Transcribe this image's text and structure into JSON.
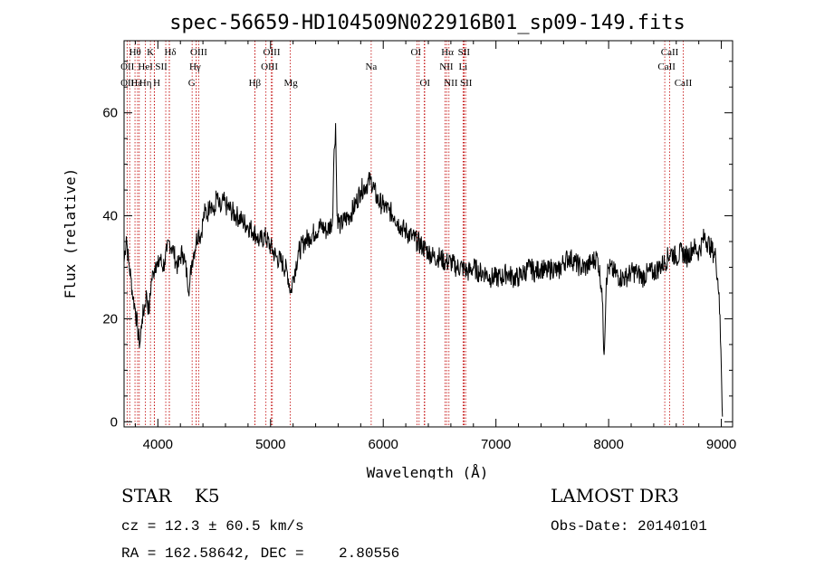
{
  "chart_data": {
    "type": "line",
    "title": "spec-56659-HD104509N022916B01_sp09-149.fits",
    "xlabel": "Wavelength (Å)",
    "ylabel": "Flux (relative)",
    "xlim": [
      3700,
      9100
    ],
    "ylim": [
      -1,
      74
    ],
    "x_ticks": [
      4000,
      5000,
      6000,
      7000,
      8000,
      9000
    ],
    "y_ticks": [
      0,
      20,
      40,
      60
    ],
    "series": [
      {
        "name": "spectrum",
        "points": [
          [
            3700,
            31
          ],
          [
            3720,
            36
          ],
          [
            3740,
            31
          ],
          [
            3760,
            28
          ],
          [
            3780,
            24
          ],
          [
            3800,
            22
          ],
          [
            3820,
            18
          ],
          [
            3840,
            15
          ],
          [
            3860,
            20
          ],
          [
            3880,
            22
          ],
          [
            3900,
            25
          ],
          [
            3920,
            21
          ],
          [
            3940,
            27
          ],
          [
            3960,
            29
          ],
          [
            3980,
            31
          ],
          [
            4000,
            30
          ],
          [
            4020,
            32
          ],
          [
            4040,
            30
          ],
          [
            4060,
            31
          ],
          [
            4080,
            33
          ],
          [
            4100,
            35
          ],
          [
            4120,
            34
          ],
          [
            4140,
            33
          ],
          [
            4160,
            31
          ],
          [
            4180,
            30
          ],
          [
            4200,
            32
          ],
          [
            4220,
            33
          ],
          [
            4240,
            31
          ],
          [
            4260,
            28
          ],
          [
            4280,
            26
          ],
          [
            4300,
            31
          ],
          [
            4320,
            33
          ],
          [
            4340,
            35
          ],
          [
            4360,
            37
          ],
          [
            4380,
            36
          ],
          [
            4400,
            39
          ],
          [
            4420,
            41
          ],
          [
            4440,
            40
          ],
          [
            4460,
            43
          ],
          [
            4480,
            42
          ],
          [
            4500,
            40
          ],
          [
            4520,
            44
          ],
          [
            4540,
            42
          ],
          [
            4560,
            41
          ],
          [
            4580,
            43
          ],
          [
            4600,
            42
          ],
          [
            4650,
            41
          ],
          [
            4700,
            40
          ],
          [
            4750,
            39
          ],
          [
            4800,
            38
          ],
          [
            4850,
            37
          ],
          [
            4880,
            36
          ],
          [
            4900,
            35
          ],
          [
            4950,
            36
          ],
          [
            5000,
            34
          ],
          [
            5050,
            32
          ],
          [
            5100,
            31
          ],
          [
            5150,
            29
          ],
          [
            5180,
            25
          ],
          [
            5200,
            28
          ],
          [
            5250,
            33
          ],
          [
            5300,
            35
          ],
          [
            5350,
            36
          ],
          [
            5400,
            37
          ],
          [
            5450,
            38
          ],
          [
            5500,
            37
          ],
          [
            5550,
            39
          ],
          [
            5560,
            50
          ],
          [
            5577,
            58
          ],
          [
            5590,
            40
          ],
          [
            5620,
            38
          ],
          [
            5650,
            39
          ],
          [
            5700,
            40
          ],
          [
            5750,
            42
          ],
          [
            5800,
            45
          ],
          [
            5850,
            46
          ],
          [
            5890,
            47
          ],
          [
            5920,
            45
          ],
          [
            5950,
            43
          ],
          [
            6000,
            42
          ],
          [
            6050,
            41
          ],
          [
            6100,
            40
          ],
          [
            6150,
            38
          ],
          [
            6200,
            37
          ],
          [
            6250,
            36
          ],
          [
            6300,
            35
          ],
          [
            6350,
            34
          ],
          [
            6400,
            33
          ],
          [
            6450,
            32
          ],
          [
            6500,
            32
          ],
          [
            6550,
            31
          ],
          [
            6600,
            31
          ],
          [
            6650,
            30
          ],
          [
            6700,
            30
          ],
          [
            6750,
            29
          ],
          [
            6800,
            30
          ],
          [
            6850,
            29
          ],
          [
            6900,
            29
          ],
          [
            6950,
            28
          ],
          [
            7000,
            28
          ],
          [
            7050,
            28
          ],
          [
            7100,
            29
          ],
          [
            7150,
            28
          ],
          [
            7200,
            28
          ],
          [
            7250,
            29
          ],
          [
            7300,
            30
          ],
          [
            7350,
            29
          ],
          [
            7400,
            30
          ],
          [
            7450,
            29
          ],
          [
            7500,
            30
          ],
          [
            7550,
            29
          ],
          [
            7600,
            31
          ],
          [
            7650,
            32
          ],
          [
            7700,
            31
          ],
          [
            7750,
            30
          ],
          [
            7800,
            30
          ],
          [
            7850,
            31
          ],
          [
            7900,
            32
          ],
          [
            7940,
            26
          ],
          [
            7960,
            13
          ],
          [
            7980,
            28
          ],
          [
            8000,
            30
          ],
          [
            8050,
            29
          ],
          [
            8100,
            28
          ],
          [
            8150,
            28
          ],
          [
            8200,
            29
          ],
          [
            8250,
            29
          ],
          [
            8300,
            28
          ],
          [
            8350,
            29
          ],
          [
            8400,
            29
          ],
          [
            8450,
            30
          ],
          [
            8500,
            31
          ],
          [
            8550,
            33
          ],
          [
            8600,
            32
          ],
          [
            8650,
            33
          ],
          [
            8700,
            32
          ],
          [
            8750,
            34
          ],
          [
            8800,
            33
          ],
          [
            8850,
            36
          ],
          [
            8900,
            34
          ],
          [
            8950,
            32
          ],
          [
            8980,
            25
          ],
          [
            9000,
            10
          ],
          [
            9010,
            1
          ]
        ]
      }
    ],
    "spectral_lines": [
      {
        "label": "Hθ",
        "row": 1,
        "wl": 3797,
        "anchor": 3798
      },
      {
        "label": "OII",
        "row": 2,
        "wl": 3727,
        "anchor": 3730
      },
      {
        "label": "OII",
        "row": 3,
        "wl": 3727,
        "anchor": 3730
      },
      {
        "label": "Hε",
        "row": 3,
        "wl": 3889,
        "anchor": 3810
      },
      {
        "label": "Hη",
        "row": 3,
        "wl": 3835,
        "anchor": 3890
      },
      {
        "label": "K",
        "row": 1,
        "wl": 3934,
        "anchor": 3934
      },
      {
        "label": "HeI",
        "row": 2,
        "wl": 3889,
        "anchor": 3890
      },
      {
        "label": "SII",
        "row": 2,
        "wl": 4070,
        "anchor": 4030
      },
      {
        "label": "H",
        "row": 3,
        "wl": 3969,
        "anchor": 3990
      },
      {
        "label": "Hδ",
        "row": 1,
        "wl": 4102,
        "anchor": 4110
      },
      {
        "label": "OIII",
        "row": 1,
        "wl": 4363,
        "anchor": 4363
      },
      {
        "label": "Hγ",
        "row": 2,
        "wl": 4340,
        "anchor": 4330
      },
      {
        "label": "G",
        "row": 3,
        "wl": 4304,
        "anchor": 4300
      },
      {
        "label": "OIII",
        "row": 1,
        "wl": 5007,
        "anchor": 5010
      },
      {
        "label": "OIII",
        "row": 2,
        "wl": 4959,
        "anchor": 4990
      },
      {
        "label": "Hβ",
        "row": 3,
        "wl": 4861,
        "anchor": 4860
      },
      {
        "label": "Mg",
        "row": 3,
        "wl": 5175,
        "anchor": 5180
      },
      {
        "label": "Na",
        "row": 2,
        "wl": 5893,
        "anchor": 5893
      },
      {
        "label": "OI",
        "row": 1,
        "wl": 6300,
        "anchor": 6290
      },
      {
        "label": "OI",
        "row": 3,
        "wl": 6364,
        "anchor": 6370
      },
      {
        "label": "Hα",
        "row": 1,
        "wl": 6563,
        "anchor": 6570
      },
      {
        "label": "SII",
        "row": 1,
        "wl": 6716,
        "anchor": 6716
      },
      {
        "label": "NII",
        "row": 2,
        "wl": 6548,
        "anchor": 6560
      },
      {
        "label": "Li",
        "row": 2,
        "wl": 6708,
        "anchor": 6708
      },
      {
        "label": "NII",
        "row": 3,
        "wl": 6583,
        "anchor": 6600
      },
      {
        "label": "SII",
        "row": 3,
        "wl": 6731,
        "anchor": 6735
      },
      {
        "label": "CaII",
        "row": 1,
        "wl": 8542,
        "anchor": 8542
      },
      {
        "label": "CaII",
        "row": 2,
        "wl": 8498,
        "anchor": 8515
      },
      {
        "label": "CaII",
        "row": 3,
        "wl": 8662,
        "anchor": 8662
      }
    ],
    "extra_line_wl": [
      3750,
      3820,
      3968,
      4101,
      4341,
      4862,
      5016,
      6318,
      6368,
      6718,
      8498,
      8542,
      8662
    ]
  },
  "info": {
    "object_class": "STAR",
    "subclass": "K5",
    "survey": "LAMOST DR3",
    "cz_text": "cz = 12.3 ± 60.5 km/s",
    "obs_date_text": "Obs-Date: 20140101",
    "radec_text": "RA = 162.58642, DEC =    2.80556"
  },
  "colors": {
    "spectrum": "#000000",
    "line_marker": "#c00000",
    "axes": "#000000"
  }
}
